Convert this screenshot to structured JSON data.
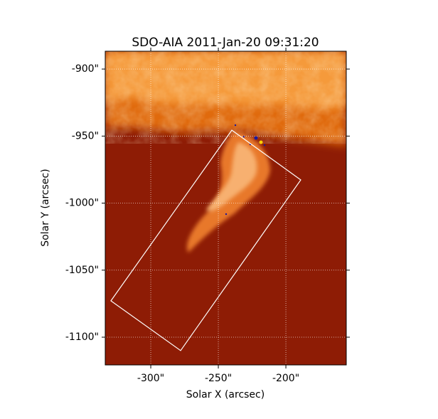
{
  "chart_data": {
    "type": "image",
    "title": "SDO-AIA   2011-Jan-20 09:31:20",
    "x_label": "Solar X (arcsec)",
    "y_label": "Solar Y (arcsec)",
    "xlim": [
      -333.7,
      -155.3
    ],
    "ylim": [
      -1120.7,
      -886.7
    ],
    "xticks": [
      {
        "value": -300,
        "label": "-300\""
      },
      {
        "value": -250,
        "label": "-250\""
      },
      {
        "value": -200,
        "label": "-200\""
      }
    ],
    "yticks": [
      {
        "value": -900,
        "label": "-900\""
      },
      {
        "value": -950,
        "label": "-950\""
      },
      {
        "value": -1000,
        "label": "-1000\""
      },
      {
        "value": -1050,
        "label": "-1050\""
      },
      {
        "value": -1100,
        "label": "-1100\""
      }
    ],
    "grid": true,
    "box": {
      "color": "#ffffff",
      "x": [
        -240.0,
        -189.0,
        -277.9,
        -329.5
      ],
      "y": [
        -945.6,
        -982.7,
        -1110.0,
        -1072.9
      ]
    }
  }
}
